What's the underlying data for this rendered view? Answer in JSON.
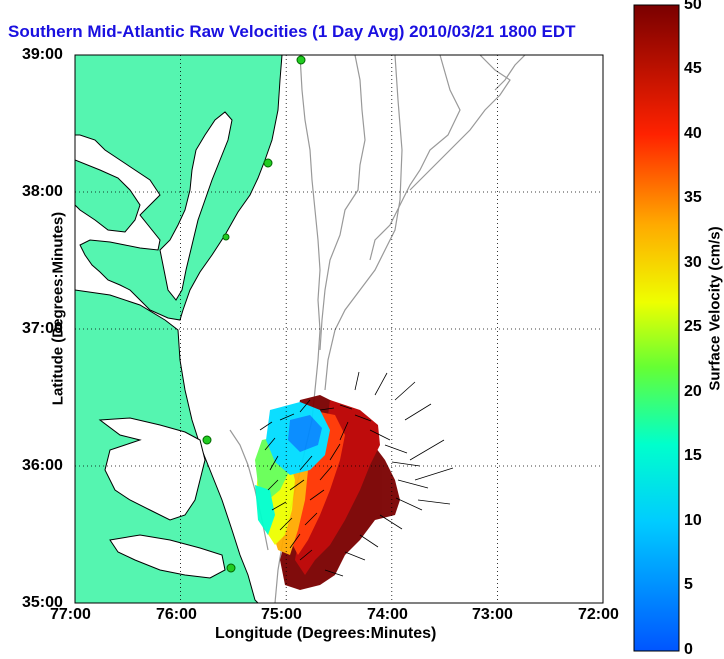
{
  "title": "Southern Mid-Atlantic Raw Velocities (1 Day Avg) 2010/03/21 1800 EDT",
  "xlabel": "Longitude (Degrees:Minutes)",
  "ylabel": "Latitude (Degrees:Minutes)",
  "colorbar_label": "Surface Velocity (cm/s)",
  "x_ticks": [
    "77:00",
    "76:00",
    "75:00",
    "74:00",
    "73:00",
    "72:00"
  ],
  "y_ticks": [
    "39:00",
    "38:00",
    "37:00",
    "36:00",
    "35:00"
  ],
  "colorbar_ticks": [
    "50",
    "45",
    "40",
    "35",
    "30",
    "25",
    "20",
    "15",
    "10",
    "5",
    "0"
  ],
  "colors": {
    "land": "#55f5b0",
    "title": "#1a10e0",
    "contour": "#999999",
    "site": "#22cc22"
  },
  "map_extent": {
    "lon": [
      -77,
      -72
    ],
    "lat": [
      35,
      39
    ]
  },
  "colorbar_range": [
    0,
    50
  ]
}
